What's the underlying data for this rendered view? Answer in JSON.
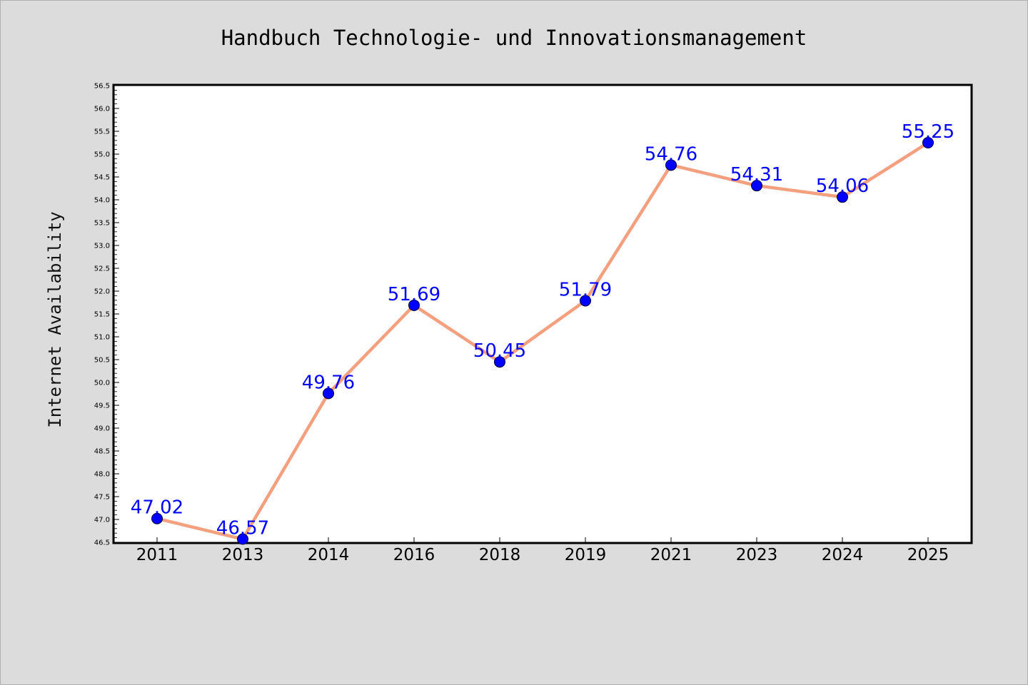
{
  "chart_data": {
    "type": "line",
    "title": "Handbuch Technologie- und Innovationsmanagement",
    "xlabel": "",
    "ylabel": "Internet Availability",
    "categories": [
      "2011",
      "2013",
      "2014",
      "2016",
      "2018",
      "2019",
      "2021",
      "2023",
      "2024",
      "2025"
    ],
    "series": [
      {
        "values": [
          47.02,
          46.57,
          49.76,
          51.69,
          50.45,
          51.79,
          54.76,
          54.31,
          54.06,
          55.25
        ],
        "labels": [
          "47.02",
          "46.57",
          "49.76",
          "51.69",
          "50.45",
          "51.79",
          "54.76",
          "54.31",
          "54.06",
          "55.25"
        ]
      }
    ],
    "ylim": [
      46.5,
      56.5
    ],
    "yticks": [
      "46.5",
      "47.0",
      "47.5",
      "48.0",
      "48.5",
      "49.0",
      "49.5",
      "50.0",
      "50.5",
      "51.0",
      "51.5",
      "52.0",
      "52.5",
      "53.0",
      "53.5",
      "54.0",
      "54.5",
      "55.0",
      "55.5",
      "56.0",
      "56.5"
    ],
    "grid": false,
    "legend": "none",
    "colors": {
      "line": "#f4a07e",
      "marker": "#0000ff",
      "label": "#0000ff",
      "background": "#dcdcdc",
      "plot_background": "#ffffff"
    }
  }
}
